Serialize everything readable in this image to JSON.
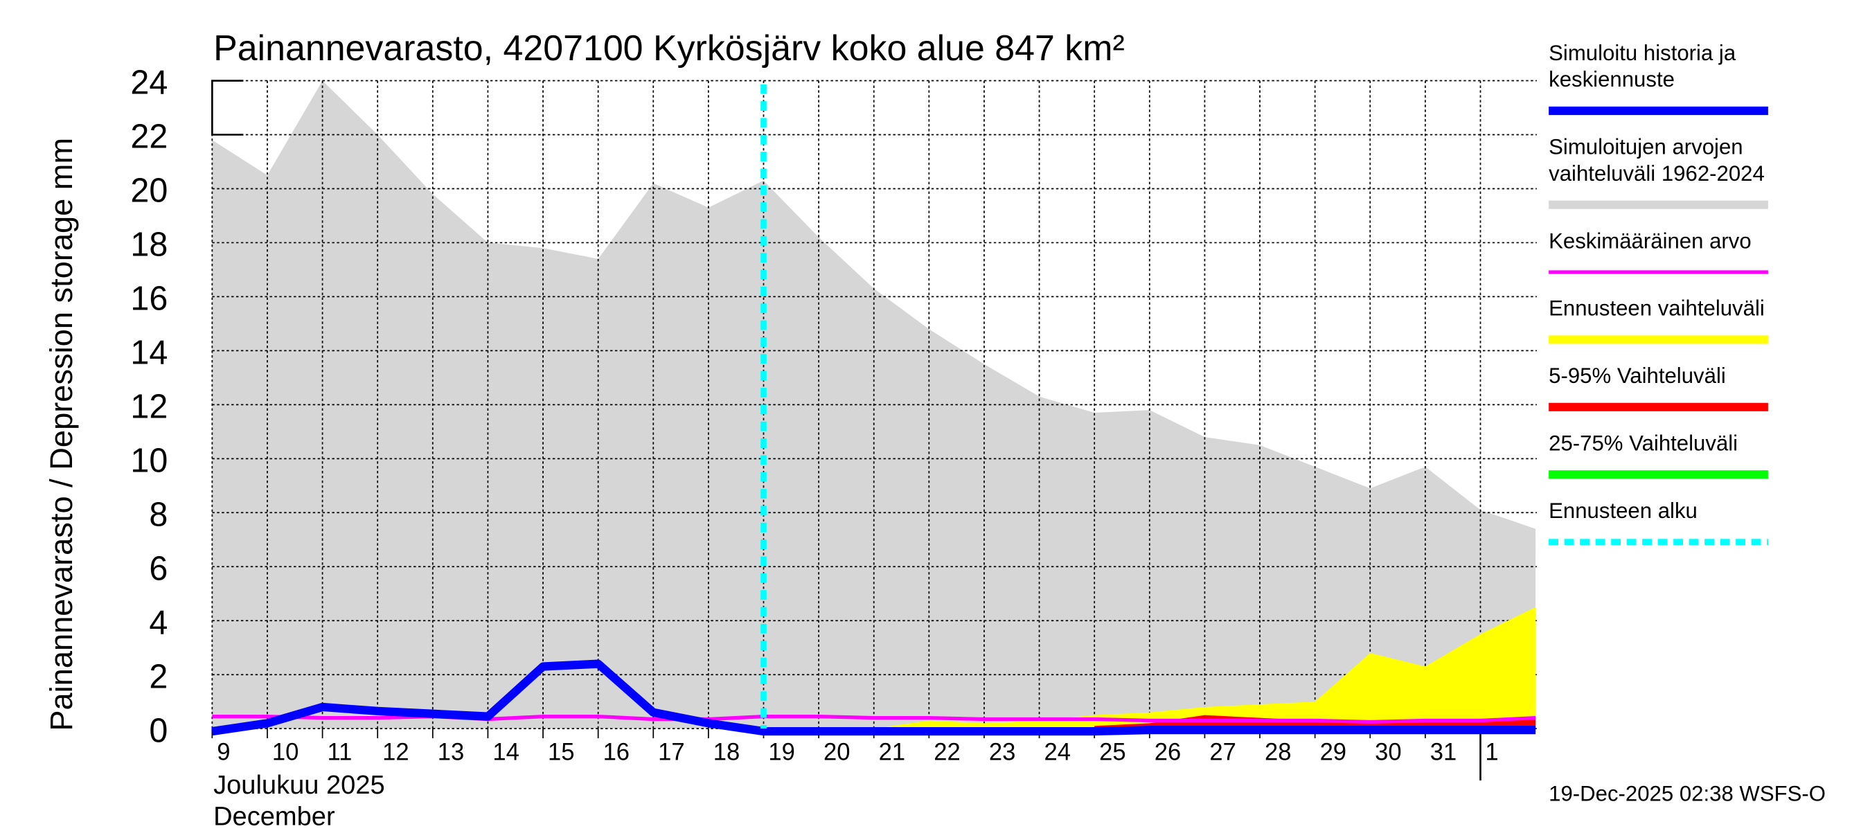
{
  "chart_data": {
    "type": "area",
    "title": "Painannevarasto, 4207100 Kyrkösjärv koko alue 847 km²",
    "ylabel": "Painannevarasto / Depression storage    mm",
    "ylim": [
      0,
      24
    ],
    "yticks": [
      "0",
      "2",
      "4",
      "6",
      "8",
      "10",
      "12",
      "14",
      "16",
      "18",
      "20",
      "22",
      "24"
    ],
    "xticks": [
      "9",
      "10",
      "11",
      "12",
      "13",
      "14",
      "15",
      "16",
      "17",
      "18",
      "19",
      "20",
      "21",
      "22",
      "23",
      "24",
      "25",
      "26",
      "27",
      "28",
      "29",
      "30",
      "31",
      "1"
    ],
    "xlabel_month_fi": "Joulukuu  2025",
    "xlabel_month_en": "December",
    "grid": true,
    "forecast_start_index": 10,
    "series": [
      {
        "name": "Simuloitujen arvojen vaihteluväli 1962-2024",
        "color": "#d6d6d6",
        "kind": "range",
        "upper": [
          21.8,
          20.5,
          24,
          22,
          19.8,
          18,
          17.8,
          17.4,
          20.2,
          19.3,
          20.3,
          18.2,
          16.3,
          14.8,
          13.5,
          12.3,
          11.7,
          11.8,
          10.8,
          10.5,
          9.7,
          8.9,
          9.7,
          8.1,
          7.4
        ]
      },
      {
        "name": "Ennusteen vaihteluväli",
        "color": "#ffff00",
        "kind": "range",
        "start": 12,
        "upper": [
          0,
          0.3,
          0.2,
          0.3,
          0.5,
          0.6,
          0.8,
          0.9,
          1.0,
          2.8,
          2.3,
          3.5,
          4.5
        ]
      },
      {
        "name": "5-95% Vaihteluväli",
        "color": "#ff0000",
        "kind": "range",
        "start": 16,
        "upper": [
          0.1,
          0.2,
          0.5,
          0.4,
          0.3,
          0.3,
          0.3,
          0.35,
          0.4
        ]
      },
      {
        "name": "Keskimääräinen arvo",
        "color": "#ff00ff",
        "kind": "line",
        "values": [
          0.45,
          0.45,
          0.4,
          0.4,
          0.45,
          0.35,
          0.45,
          0.45,
          0.35,
          0.35,
          0.45,
          0.45,
          0.4,
          0.4,
          0.35,
          0.35,
          0.35,
          0.3,
          0.3,
          0.3,
          0.3,
          0.25,
          0.3,
          0.3,
          0.4
        ]
      },
      {
        "name": "Simuloitu historia ja keskiennuste",
        "color": "#0000ff",
        "kind": "line",
        "values": [
          -0.1,
          0.2,
          0.8,
          0.65,
          0.55,
          0.45,
          2.3,
          2.4,
          0.6,
          0.2,
          -0.1,
          -0.1,
          -0.1,
          -0.1,
          -0.1,
          -0.1,
          -0.1,
          -0.05,
          -0.05,
          -0.05,
          -0.05,
          -0.05,
          -0.05,
          -0.05,
          -0.05
        ]
      }
    ],
    "legend": {
      "placement": "right",
      "items": [
        {
          "label1": "Simuloitu historia ja",
          "label2": "keskiennuste",
          "color": "#0000ff",
          "style": "thick"
        },
        {
          "label1": "Simuloitujen arvojen",
          "label2": "vaihteluväli 1962-2024",
          "color": "#d6d6d6",
          "style": "thick"
        },
        {
          "label1": "Keskimääräinen arvo",
          "label2": "",
          "color": "#ff00ff",
          "style": "thin"
        },
        {
          "label1": "Ennusteen vaihteluväli",
          "label2": "",
          "color": "#ffff00",
          "style": "thick"
        },
        {
          "label1": "5-95% Vaihteluväli",
          "label2": "",
          "color": "#ff0000",
          "style": "thick"
        },
        {
          "label1": "25-75% Vaihteluväli",
          "label2": "",
          "color": "#00ff00",
          "style": "thick"
        },
        {
          "label1": "Ennusteen alku",
          "label2": "",
          "color": "#00ffff",
          "style": "dashed"
        }
      ]
    },
    "footer": "19-Dec-2025 02:38 WSFS-O"
  }
}
